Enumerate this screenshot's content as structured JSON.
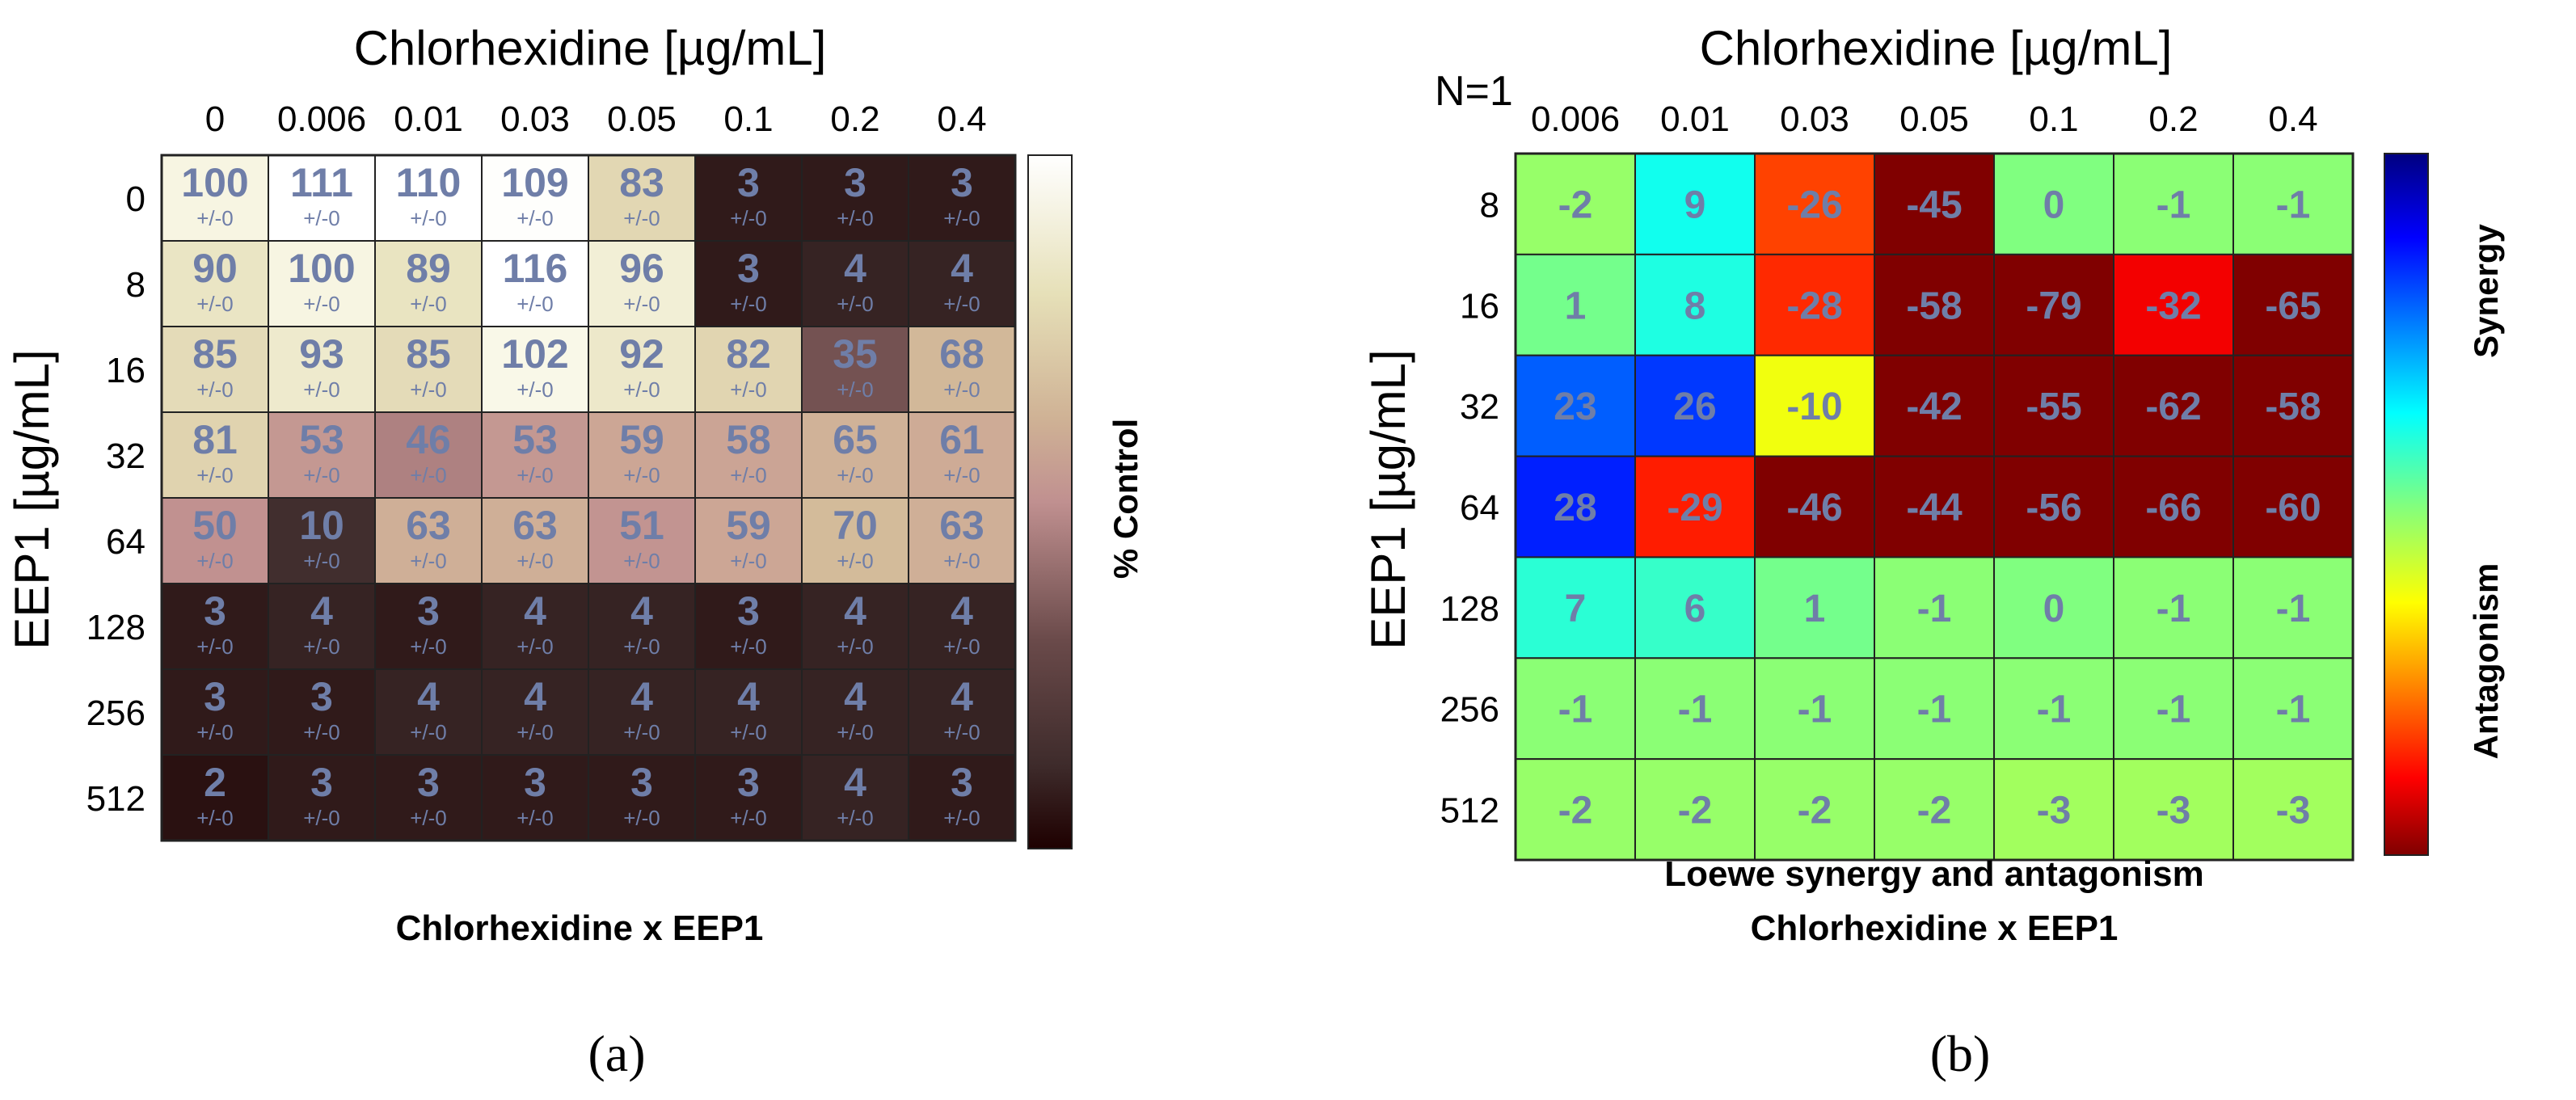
{
  "panel_a": {
    "label": "(a)",
    "colorbar_label": "% Control"
  },
  "panel_b": {
    "label": "(b)",
    "n_label": "N=1",
    "colorbar_top_label": "Synergy",
    "colorbar_bottom_label": "Antagonism"
  },
  "chart_data": [
    {
      "type": "heatmap",
      "title": "Chlorhexidine x EEP1",
      "xlabel": "Chlorhexidine [µg/mL]",
      "ylabel": "EEP1 [µg/mL]",
      "x": [
        "0",
        "0.006",
        "0.01",
        "0.03",
        "0.05",
        "0.1",
        "0.2",
        "0.4"
      ],
      "y": [
        "0",
        "8",
        "16",
        "32",
        "64",
        "128",
        "256",
        "512"
      ],
      "values": [
        [
          100,
          111,
          110,
          109,
          83,
          3,
          3,
          3
        ],
        [
          90,
          100,
          89,
          116,
          96,
          3,
          4,
          4
        ],
        [
          85,
          93,
          85,
          102,
          92,
          82,
          35,
          68
        ],
        [
          81,
          53,
          46,
          53,
          59,
          58,
          65,
          61
        ],
        [
          50,
          10,
          63,
          63,
          51,
          59,
          70,
          63
        ],
        [
          3,
          4,
          3,
          4,
          4,
          3,
          4,
          4
        ],
        [
          3,
          3,
          4,
          4,
          4,
          4,
          4,
          4
        ],
        [
          2,
          3,
          3,
          3,
          3,
          3,
          4,
          3
        ]
      ],
      "cell_sublabel": "+/-0",
      "colorbar_label": "% Control",
      "colormap": "pink",
      "value_range": [
        0,
        110
      ]
    },
    {
      "type": "heatmap",
      "title": "Loewe synergy and antagonism",
      "subtitle": "Chlorhexidine x EEP1",
      "xlabel": "Chlorhexidine [µg/mL]",
      "ylabel": "EEP1 [µg/mL]",
      "x": [
        "0.006",
        "0.01",
        "0.03",
        "0.05",
        "0.1",
        "0.2",
        "0.4"
      ],
      "y": [
        "8",
        "16",
        "32",
        "64",
        "128",
        "256",
        "512"
      ],
      "values": [
        [
          -2,
          9,
          -26,
          -45,
          0,
          -1,
          -1
        ],
        [
          1,
          8,
          -28,
          -58,
          -79,
          -32,
          -65
        ],
        [
          23,
          26,
          -10,
          -42,
          -55,
          -62,
          -58
        ],
        [
          28,
          -29,
          -46,
          -44,
          -56,
          -66,
          -60
        ],
        [
          7,
          6,
          1,
          -1,
          0,
          -1,
          -1
        ],
        [
          -1,
          -1,
          -1,
          -1,
          -1,
          -1,
          -1
        ],
        [
          -2,
          -2,
          -2,
          -2,
          -3,
          -3,
          -3
        ]
      ],
      "colormap": "jet",
      "value_range": [
        -40,
        40
      ],
      "colorbar_top": "Synergy",
      "colorbar_bottom": "Antagonism"
    }
  ]
}
